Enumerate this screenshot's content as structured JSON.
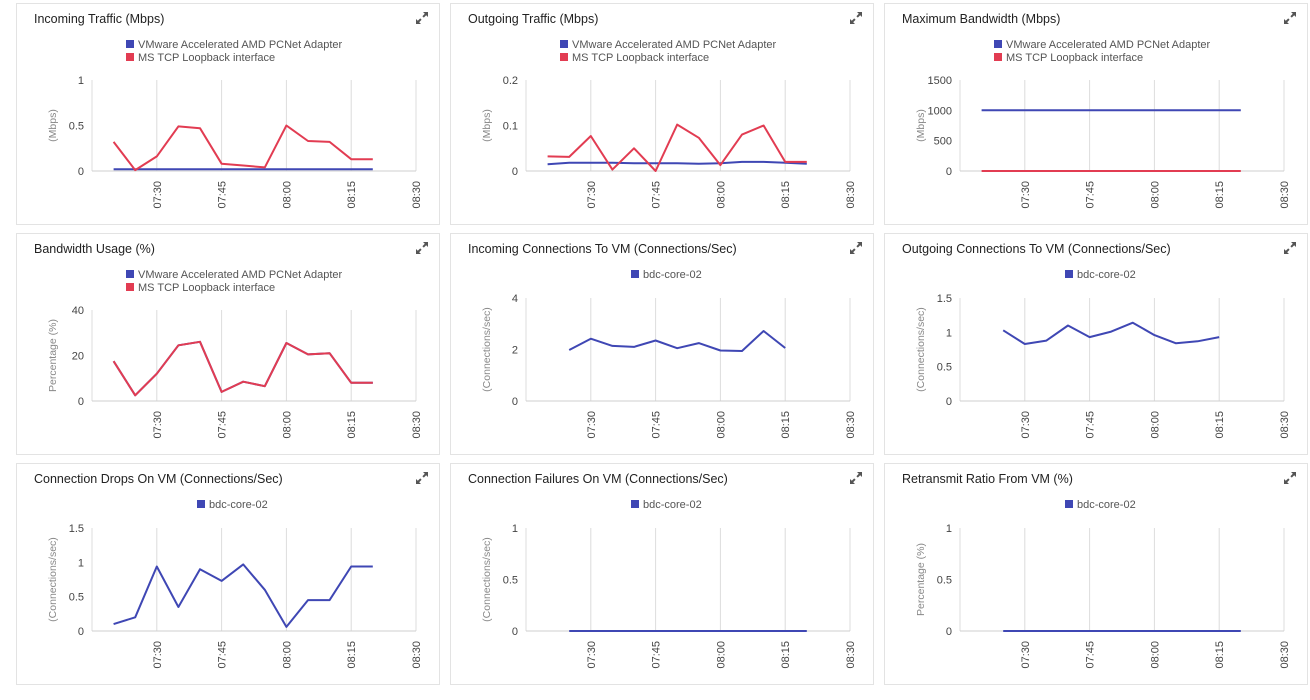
{
  "icons": {
    "expand": "expand-arrows-icon"
  },
  "colors": {
    "blue": "#3f47b4",
    "red": "#e23c52"
  },
  "chart_data": [
    {
      "type": "line",
      "title": "Incoming Traffic (Mbps)",
      "ylabel": "(Mbps)",
      "ylim": [
        0,
        1
      ],
      "yticks": [
        "0",
        "0.5",
        "1"
      ],
      "xticks": [
        "07:30",
        "07:45",
        "08:00",
        "08:15",
        "08:30"
      ],
      "legend": "top-center",
      "series": [
        {
          "name": "VMware Accelerated AMD PCNet Adapter",
          "color": "#3f47b4",
          "x": [
            "07:20",
            "07:25",
            "07:30",
            "07:35",
            "07:40",
            "07:45",
            "07:50",
            "07:55",
            "08:00",
            "08:05",
            "08:10",
            "08:15",
            "08:20"
          ],
          "values": [
            0.02,
            0.02,
            0.02,
            0.02,
            0.02,
            0.02,
            0.02,
            0.02,
            0.02,
            0.02,
            0.02,
            0.02,
            0.02
          ]
        },
        {
          "name": "MS TCP Loopback interface",
          "color": "#e23c52",
          "x": [
            "07:20",
            "07:25",
            "07:30",
            "07:35",
            "07:40",
            "07:45",
            "07:50",
            "07:55",
            "08:00",
            "08:05",
            "08:10",
            "08:15",
            "08:20"
          ],
          "values": [
            0.32,
            0.01,
            0.16,
            0.49,
            0.47,
            0.08,
            0.06,
            0.04,
            0.5,
            0.33,
            0.32,
            0.13,
            0.13
          ]
        }
      ]
    },
    {
      "type": "line",
      "title": "Outgoing Traffic (Mbps)",
      "ylabel": "(Mbps)",
      "ylim": [
        0,
        0.2
      ],
      "yticks": [
        "0",
        "0.1",
        "0.2"
      ],
      "xticks": [
        "07:30",
        "07:45",
        "08:00",
        "08:15",
        "08:30"
      ],
      "legend": "top-center",
      "series": [
        {
          "name": "VMware Accelerated AMD PCNet Adapter",
          "color": "#3f47b4",
          "x": [
            "07:20",
            "07:25",
            "07:30",
            "07:35",
            "07:40",
            "07:45",
            "07:50",
            "07:55",
            "08:00",
            "08:05",
            "08:10",
            "08:15",
            "08:20"
          ],
          "values": [
            0.015,
            0.018,
            0.018,
            0.018,
            0.017,
            0.017,
            0.017,
            0.016,
            0.017,
            0.02,
            0.02,
            0.018,
            0.016
          ]
        },
        {
          "name": "MS TCP Loopback interface",
          "color": "#e23c52",
          "x": [
            "07:20",
            "07:25",
            "07:30",
            "07:35",
            "07:40",
            "07:45",
            "07:50",
            "07:55",
            "08:00",
            "08:05",
            "08:10",
            "08:15",
            "08:20"
          ],
          "values": [
            0.032,
            0.031,
            0.077,
            0.003,
            0.05,
            0.0,
            0.102,
            0.073,
            0.013,
            0.08,
            0.1,
            0.02,
            0.02
          ]
        }
      ]
    },
    {
      "type": "line",
      "title": "Maximum Bandwidth (Mbps)",
      "ylabel": "(Mbps)",
      "ylim": [
        0,
        1500
      ],
      "yticks": [
        "0",
        "500",
        "1000",
        "1500"
      ],
      "xticks": [
        "07:30",
        "07:45",
        "08:00",
        "08:15",
        "08:30"
      ],
      "legend": "top-center",
      "series": [
        {
          "name": "VMware Accelerated AMD PCNet Adapter",
          "color": "#3f47b4",
          "x": [
            "07:20",
            "08:20"
          ],
          "values": [
            1000,
            1000
          ]
        },
        {
          "name": "MS TCP Loopback interface",
          "color": "#e23c52",
          "x": [
            "07:20",
            "08:20"
          ],
          "values": [
            0,
            0
          ]
        }
      ]
    },
    {
      "type": "line",
      "title": "Bandwidth Usage (%)",
      "ylabel": "Percentage (%)",
      "ylim": [
        0,
        40
      ],
      "yticks": [
        "0",
        "20",
        "40"
      ],
      "xticks": [
        "07:30",
        "07:45",
        "08:00",
        "08:15",
        "08:30"
      ],
      "legend": "top-center",
      "series": [
        {
          "name": "VMware Accelerated AMD PCNet Adapter",
          "color": "#3f47b4",
          "x": [
            "07:20",
            "07:25",
            "07:30",
            "07:35",
            "07:40",
            "07:45",
            "07:50",
            "07:55",
            "08:00",
            "08:05",
            "08:10",
            "08:15",
            "08:20"
          ],
          "values": [
            17.5,
            2.5,
            12,
            24.5,
            26,
            4,
            8.5,
            6.5,
            25.5,
            20.5,
            21,
            8,
            8
          ]
        },
        {
          "name": "MS TCP Loopback interface",
          "color": "#e23c52",
          "x": [
            "07:20",
            "07:25",
            "07:30",
            "07:35",
            "07:40",
            "07:45",
            "07:50",
            "07:55",
            "08:00",
            "08:05",
            "08:10",
            "08:15",
            "08:20"
          ],
          "values": [
            17.5,
            2.5,
            12,
            24.5,
            26,
            4,
            8.5,
            6.5,
            25.5,
            20.5,
            21,
            8,
            8
          ]
        }
      ]
    },
    {
      "type": "line",
      "title": "Incoming Connections To VM (Connections/Sec)",
      "ylabel": "(Connections/sec)",
      "ylim": [
        0,
        4
      ],
      "yticks": [
        "0",
        "2",
        "4"
      ],
      "xticks": [
        "07:30",
        "07:45",
        "08:00",
        "08:15",
        "08:30"
      ],
      "legend": "top-center",
      "series": [
        {
          "name": "bdc-core-02",
          "color": "#3f47b4",
          "x": [
            "07:25",
            "07:30",
            "07:35",
            "07:40",
            "07:45",
            "07:50",
            "07:55",
            "08:00",
            "08:05",
            "08:10",
            "08:15"
          ],
          "values": [
            1.98,
            2.42,
            2.14,
            2.1,
            2.35,
            2.05,
            2.25,
            1.96,
            1.94,
            2.72,
            2.06
          ]
        }
      ]
    },
    {
      "type": "line",
      "title": "Outgoing Connections To VM (Connections/Sec)",
      "ylabel": "(Connections/sec)",
      "ylim": [
        0,
        1.5
      ],
      "yticks": [
        "0",
        "0.5",
        "1",
        "1.5"
      ],
      "xticks": [
        "07:30",
        "07:45",
        "08:00",
        "08:15",
        "08:30"
      ],
      "legend": "top-center",
      "series": [
        {
          "name": "bdc-core-02",
          "color": "#3f47b4",
          "x": [
            "07:25",
            "07:30",
            "07:35",
            "07:40",
            "07:45",
            "07:50",
            "07:55",
            "08:00",
            "08:05",
            "08:10",
            "08:15"
          ],
          "values": [
            1.03,
            0.83,
            0.88,
            1.1,
            0.93,
            1.01,
            1.14,
            0.96,
            0.84,
            0.87,
            0.93
          ]
        }
      ]
    },
    {
      "type": "line",
      "title": "Connection Drops On VM (Connections/Sec)",
      "ylabel": "(Connections/sec)",
      "ylim": [
        0,
        1.5
      ],
      "yticks": [
        "0",
        "0.5",
        "1",
        "1.5"
      ],
      "xticks": [
        "07:30",
        "07:45",
        "08:00",
        "08:15",
        "08:30"
      ],
      "legend": "top-center",
      "series": [
        {
          "name": "bdc-core-02",
          "color": "#3f47b4",
          "x": [
            "07:20",
            "07:25",
            "07:30",
            "07:35",
            "07:40",
            "07:45",
            "07:50",
            "07:55",
            "08:00",
            "08:05",
            "08:10",
            "08:15",
            "08:20"
          ],
          "values": [
            0.1,
            0.2,
            0.94,
            0.35,
            0.9,
            0.73,
            0.97,
            0.6,
            0.06,
            0.45,
            0.45,
            0.94,
            0.94
          ]
        }
      ]
    },
    {
      "type": "line",
      "title": "Connection Failures On VM (Connections/Sec)",
      "ylabel": "(Connections/sec)",
      "ylim": [
        0,
        1
      ],
      "yticks": [
        "0",
        "0.5",
        "1"
      ],
      "xticks": [
        "07:30",
        "07:45",
        "08:00",
        "08:15",
        "08:30"
      ],
      "legend": "top-center",
      "series": [
        {
          "name": "bdc-core-02",
          "color": "#3f47b4",
          "x": [
            "07:25",
            "08:20"
          ],
          "values": [
            0,
            0
          ]
        }
      ]
    },
    {
      "type": "line",
      "title": "Retransmit Ratio From VM (%)",
      "ylabel": "Percentage (%)",
      "ylim": [
        0,
        1
      ],
      "yticks": [
        "0",
        "0.5",
        "1"
      ],
      "xticks": [
        "07:30",
        "07:45",
        "08:00",
        "08:15",
        "08:30"
      ],
      "legend": "top-center",
      "series": [
        {
          "name": "bdc-core-02",
          "color": "#3f47b4",
          "x": [
            "07:25",
            "08:20"
          ],
          "values": [
            0,
            0
          ]
        }
      ]
    }
  ]
}
